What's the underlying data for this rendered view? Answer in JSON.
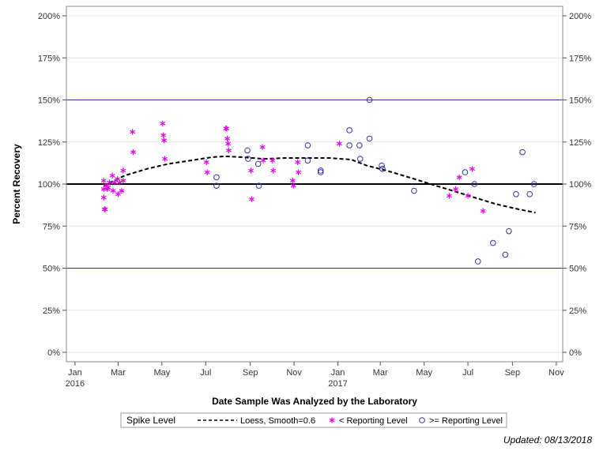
{
  "chart_data": {
    "type": "scatter",
    "xlabel": "Date Sample Was Analyzed by the Laboratory",
    "ylabel": "Percent Recovery",
    "ylim": [
      0,
      200
    ],
    "xlim": [
      "2015-12-20",
      "2017-11-10"
    ],
    "x_axis_type": "date",
    "x_ticks": [
      {
        "date": "2016-01-01",
        "label": "Jan",
        "sublabel": "2016"
      },
      {
        "date": "2016-03-01",
        "label": "Mar",
        "sublabel": ""
      },
      {
        "date": "2016-05-01",
        "label": "May",
        "sublabel": ""
      },
      {
        "date": "2016-07-01",
        "label": "Jul",
        "sublabel": ""
      },
      {
        "date": "2016-09-01",
        "label": "Sep",
        "sublabel": ""
      },
      {
        "date": "2016-11-01",
        "label": "Nov",
        "sublabel": ""
      },
      {
        "date": "2017-01-01",
        "label": "Jan",
        "sublabel": "2017"
      },
      {
        "date": "2017-03-01",
        "label": "Mar",
        "sublabel": ""
      },
      {
        "date": "2017-05-01",
        "label": "May",
        "sublabel": ""
      },
      {
        "date": "2017-07-01",
        "label": "Jul",
        "sublabel": ""
      },
      {
        "date": "2017-09-01",
        "label": "Sep",
        "sublabel": ""
      },
      {
        "date": "2017-11-01",
        "label": "Nov",
        "sublabel": ""
      }
    ],
    "y_ticks": [
      {
        "value": 0,
        "label": "0%"
      },
      {
        "value": 25,
        "label": "25%"
      },
      {
        "value": 50,
        "label": "50%"
      },
      {
        "value": 75,
        "label": "75%"
      },
      {
        "value": 100,
        "label": "100%"
      },
      {
        "value": 125,
        "label": "125%"
      },
      {
        "value": 150,
        "label": "150%"
      },
      {
        "value": 175,
        "label": "175%"
      },
      {
        "value": 200,
        "label": "200%"
      }
    ],
    "grid": true,
    "reference_lines": [
      {
        "value": 50,
        "color": "#3333a0",
        "style": "solid"
      },
      {
        "value": 100,
        "color": "#000000",
        "style": "solid-thick"
      },
      {
        "value": 150,
        "color": "#3333a0",
        "style": "solid"
      }
    ],
    "legend": {
      "title": "Spike Level",
      "placement": "bottom",
      "entries": [
        {
          "label": "Loess, Smooth=0.6",
          "marker": "dashed-line"
        },
        {
          "label": "< Reporting Level",
          "marker": "asterisk"
        },
        {
          "label": ">= Reporting Level",
          "marker": "circle"
        }
      ]
    },
    "series": [
      {
        "name": "< Reporting Level",
        "marker": "asterisk",
        "color": "#e600e6",
        "points": [
          {
            "x": "2016-02-10",
            "y": 102
          },
          {
            "x": "2016-02-10",
            "y": 97
          },
          {
            "x": "2016-02-10",
            "y": 92
          },
          {
            "x": "2016-02-11",
            "y": 85
          },
          {
            "x": "2016-02-12",
            "y": 85
          },
          {
            "x": "2016-02-13",
            "y": 99
          },
          {
            "x": "2016-02-15",
            "y": 97
          },
          {
            "x": "2016-02-16",
            "y": 98
          },
          {
            "x": "2016-02-18",
            "y": 101
          },
          {
            "x": "2016-02-22",
            "y": 105
          },
          {
            "x": "2016-02-23",
            "y": 96
          },
          {
            "x": "2016-02-25",
            "y": 101
          },
          {
            "x": "2016-02-29",
            "y": 103
          },
          {
            "x": "2016-03-01",
            "y": 94
          },
          {
            "x": "2016-03-03",
            "y": 101
          },
          {
            "x": "2016-03-06",
            "y": 96
          },
          {
            "x": "2016-03-08",
            "y": 108
          },
          {
            "x": "2016-03-08",
            "y": 102
          },
          {
            "x": "2016-03-21",
            "y": 131
          },
          {
            "x": "2016-03-22",
            "y": 119
          },
          {
            "x": "2016-05-02",
            "y": 136
          },
          {
            "x": "2016-05-03",
            "y": 129
          },
          {
            "x": "2016-05-04",
            "y": 126
          },
          {
            "x": "2016-05-05",
            "y": 115
          },
          {
            "x": "2016-07-02",
            "y": 113
          },
          {
            "x": "2016-07-03",
            "y": 107
          },
          {
            "x": "2016-07-29",
            "y": 133
          },
          {
            "x": "2016-07-30",
            "y": 133
          },
          {
            "x": "2016-07-31",
            "y": 127
          },
          {
            "x": "2016-08-01",
            "y": 124
          },
          {
            "x": "2016-08-02",
            "y": 120
          },
          {
            "x": "2016-09-02",
            "y": 108
          },
          {
            "x": "2016-09-03",
            "y": 91
          },
          {
            "x": "2016-09-18",
            "y": 122
          },
          {
            "x": "2016-09-19",
            "y": 114
          },
          {
            "x": "2016-10-02",
            "y": 114
          },
          {
            "x": "2016-10-03",
            "y": 108
          },
          {
            "x": "2016-10-30",
            "y": 102
          },
          {
            "x": "2016-10-31",
            "y": 99
          },
          {
            "x": "2016-11-06",
            "y": 113
          },
          {
            "x": "2016-11-07",
            "y": 107
          },
          {
            "x": "2017-01-03",
            "y": 124
          },
          {
            "x": "2017-06-05",
            "y": 93
          },
          {
            "x": "2017-06-14",
            "y": 97
          },
          {
            "x": "2017-06-19",
            "y": 104
          },
          {
            "x": "2017-07-01",
            "y": 93
          },
          {
            "x": "2017-07-07",
            "y": 109
          },
          {
            "x": "2017-07-22",
            "y": 84
          }
        ]
      },
      {
        "name": ">= Reporting Level",
        "marker": "circle",
        "color": "#3333a0",
        "points": [
          {
            "x": "2016-07-16",
            "y": 104
          },
          {
            "x": "2016-07-16",
            "y": 99
          },
          {
            "x": "2016-08-28",
            "y": 120
          },
          {
            "x": "2016-08-29",
            "y": 115
          },
          {
            "x": "2016-09-12",
            "y": 112
          },
          {
            "x": "2016-09-13",
            "y": 99
          },
          {
            "x": "2016-11-20",
            "y": 123
          },
          {
            "x": "2016-11-20",
            "y": 114
          },
          {
            "x": "2016-12-08",
            "y": 108
          },
          {
            "x": "2016-12-08",
            "y": 107
          },
          {
            "x": "2017-01-17",
            "y": 132
          },
          {
            "x": "2017-01-17",
            "y": 123
          },
          {
            "x": "2017-01-31",
            "y": 123
          },
          {
            "x": "2017-02-01",
            "y": 115
          },
          {
            "x": "2017-02-14",
            "y": 150
          },
          {
            "x": "2017-02-14",
            "y": 127
          },
          {
            "x": "2017-03-03",
            "y": 111
          },
          {
            "x": "2017-03-04",
            "y": 109
          },
          {
            "x": "2017-04-17",
            "y": 96
          },
          {
            "x": "2017-06-27",
            "y": 107
          },
          {
            "x": "2017-07-10",
            "y": 100
          },
          {
            "x": "2017-07-15",
            "y": 54
          },
          {
            "x": "2017-08-05",
            "y": 65
          },
          {
            "x": "2017-08-22",
            "y": 58
          },
          {
            "x": "2017-08-27",
            "y": 72
          },
          {
            "x": "2017-09-06",
            "y": 94
          },
          {
            "x": "2017-09-15",
            "y": 119
          },
          {
            "x": "2017-09-25",
            "y": 94
          },
          {
            "x": "2017-10-01",
            "y": 100
          }
        ]
      },
      {
        "name": "Loess, Smooth=0.6",
        "marker": "dashed-line",
        "color": "#000000",
        "points": [
          {
            "x": "2016-02-10",
            "y": 99
          },
          {
            "x": "2016-03-10",
            "y": 105
          },
          {
            "x": "2016-04-10",
            "y": 109
          },
          {
            "x": "2016-05-10",
            "y": 112
          },
          {
            "x": "2016-06-10",
            "y": 114
          },
          {
            "x": "2016-07-10",
            "y": 116
          },
          {
            "x": "2016-07-28",
            "y": 116.5
          },
          {
            "x": "2016-08-20",
            "y": 116
          },
          {
            "x": "2016-09-20",
            "y": 115
          },
          {
            "x": "2016-10-20",
            "y": 115.5
          },
          {
            "x": "2016-11-20",
            "y": 115.5
          },
          {
            "x": "2016-12-20",
            "y": 115.5
          },
          {
            "x": "2017-01-20",
            "y": 114.5
          },
          {
            "x": "2017-02-10",
            "y": 111
          },
          {
            "x": "2017-03-10",
            "y": 108
          },
          {
            "x": "2017-04-10",
            "y": 104
          },
          {
            "x": "2017-05-10",
            "y": 100
          },
          {
            "x": "2017-06-10",
            "y": 96
          },
          {
            "x": "2017-07-10",
            "y": 92
          },
          {
            "x": "2017-08-10",
            "y": 88
          },
          {
            "x": "2017-09-10",
            "y": 85
          },
          {
            "x": "2017-10-03",
            "y": 83
          }
        ]
      }
    ]
  },
  "footnote": "Updated: 08/13/2018"
}
